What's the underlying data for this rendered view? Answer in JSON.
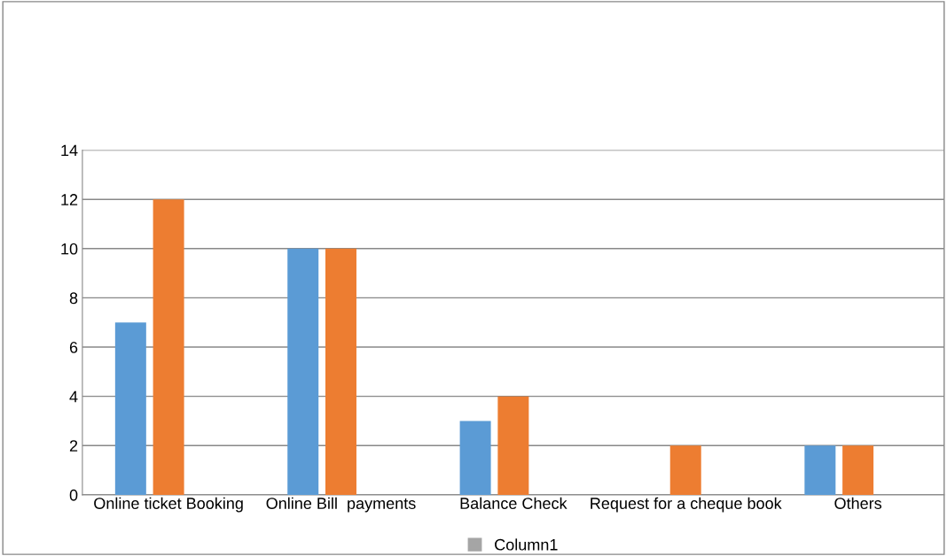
{
  "chart_data": {
    "type": "bar",
    "categories": [
      "Online ticket Booking",
      "Online Bill  payments",
      "Balance Check",
      "Request for a cheque book",
      "Others"
    ],
    "series": [
      {
        "color": "#5b9bd5",
        "values": [
          7,
          10,
          3,
          0,
          2
        ]
      },
      {
        "color": "#ed7d31",
        "values": [
          12,
          10,
          4,
          2,
          2
        ]
      },
      {
        "name": "Column1",
        "color": "#a5a5a5",
        "values": [
          null,
          null,
          null,
          null,
          null
        ]
      }
    ],
    "ylim": [
      0,
      14
    ],
    "yticks": [
      0,
      2,
      4,
      6,
      8,
      10,
      12,
      14
    ],
    "grid": "y",
    "legend": "bottom"
  }
}
